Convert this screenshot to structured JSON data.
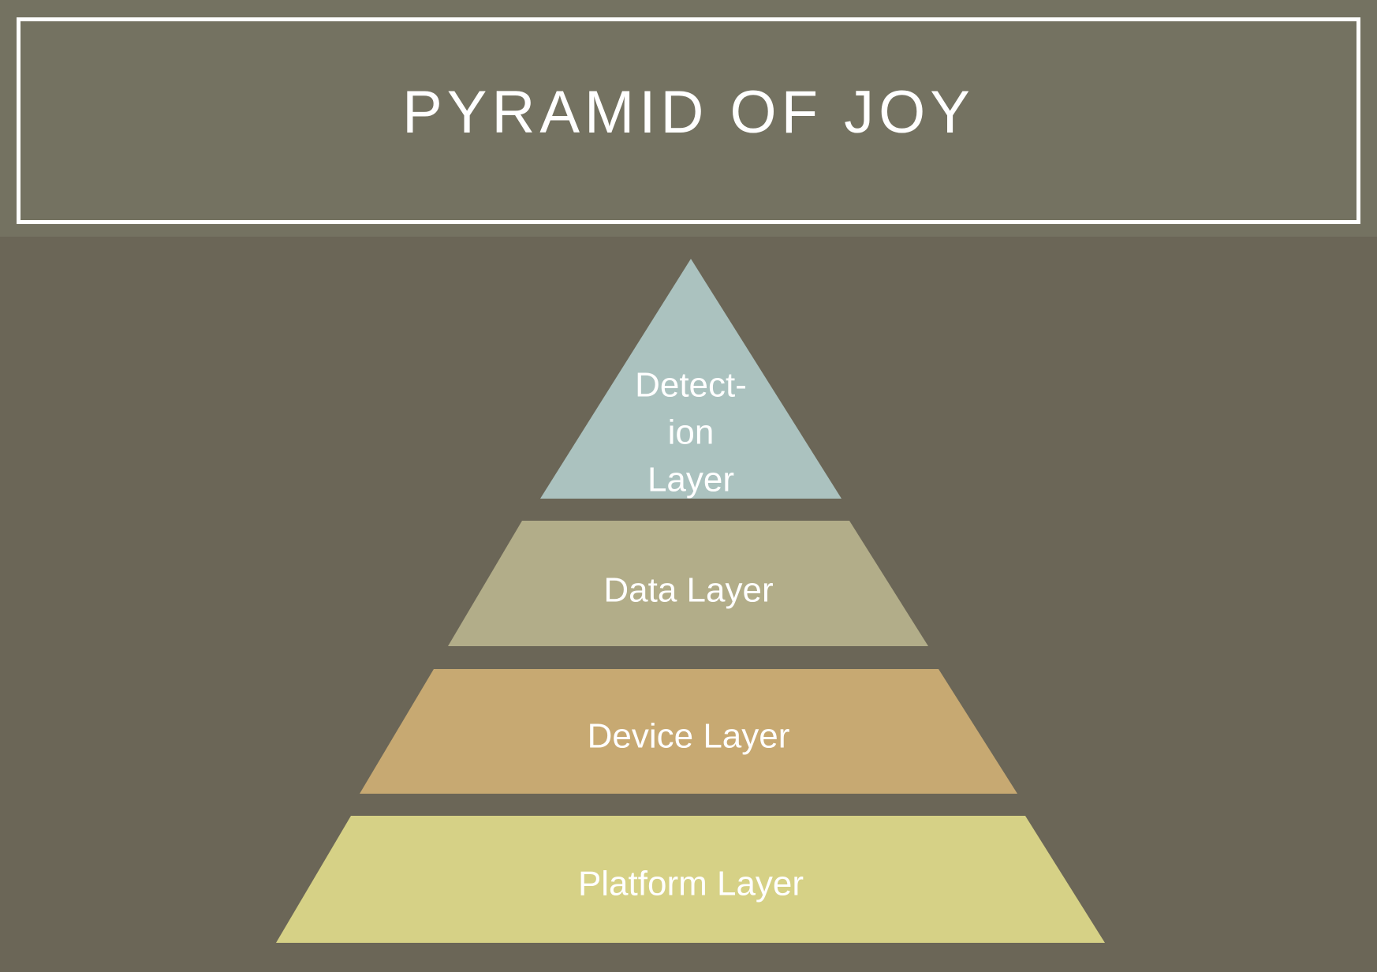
{
  "title": "PYRAMID OF JOY",
  "layers": [
    {
      "label_lines": [
        "Detect-",
        "ion",
        "Layer"
      ],
      "color": "#abc2bf"
    },
    {
      "label_lines": [
        "Data Layer"
      ],
      "color": "#b2ad89"
    },
    {
      "label_lines": [
        "Device Layer"
      ],
      "color": "#c7a972"
    },
    {
      "label_lines": [
        "Platform Layer"
      ],
      "color": "#d6d186"
    }
  ],
  "colors": {
    "background": "#6b6657",
    "title_band": "#747261",
    "title_border": "#ffffff",
    "text": "#ffffff"
  }
}
